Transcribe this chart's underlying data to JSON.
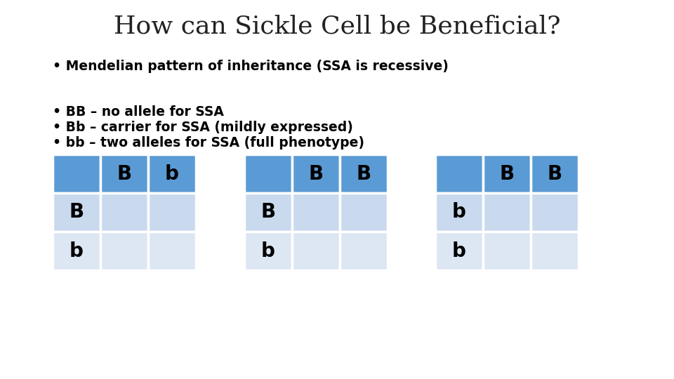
{
  "title": "How can Sickle Cell be Beneficial?",
  "title_fontsize": 26,
  "bg_color": "#ffffff",
  "bullet_points": [
    "• Mendelian pattern of inheritance (SSA is recessive)",
    "",
    "• BB – no allele for SSA",
    "• Bb – carrier for SSA (mildly expressed)",
    "• bb – two alleles for SSA (full phenotype)"
  ],
  "bullet_fontsize": 13.5,
  "header_color": "#5B9BD5",
  "light_cell_color": "#C9D9EE",
  "lighter_cell_color": "#DDE6F3",
  "tables": [
    {
      "header_row": [
        "",
        "B",
        "b"
      ],
      "rows": [
        [
          "B",
          "",
          ""
        ],
        [
          "b",
          "",
          ""
        ]
      ]
    },
    {
      "header_row": [
        "",
        "B",
        "B"
      ],
      "rows": [
        [
          "B",
          "",
          ""
        ],
        [
          "b",
          "",
          ""
        ]
      ]
    },
    {
      "header_row": [
        "",
        "B",
        "B"
      ],
      "rows": [
        [
          "b",
          "",
          ""
        ],
        [
          "b",
          "",
          ""
        ]
      ]
    }
  ]
}
